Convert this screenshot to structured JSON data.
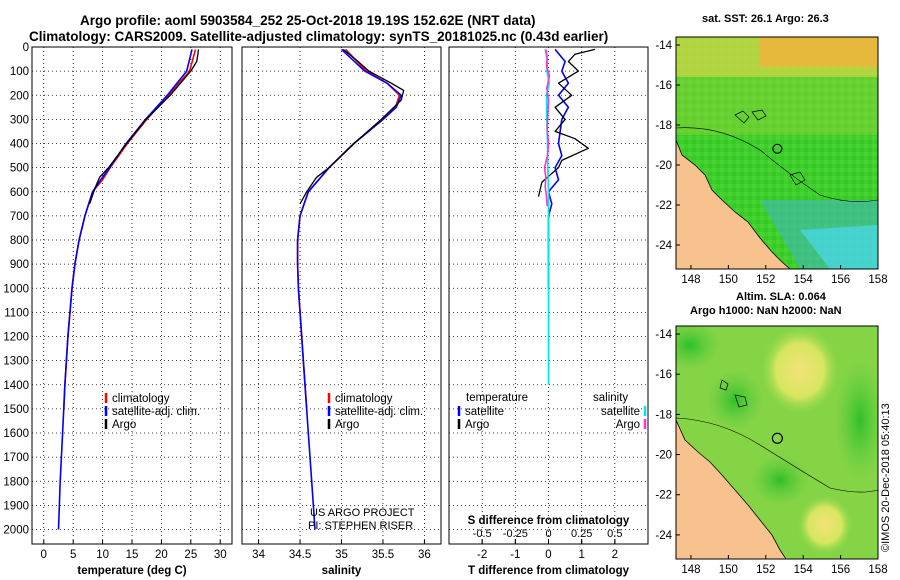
{
  "header": {
    "line1": "Argo profile: aoml 5903584_252 25-Oct-2018 19.19S 152.62E (NRT data)",
    "line2": "Climatology: CARS2009. Satellite-adjusted climatology: synTS_20181025.nc (0.43d earlier)"
  },
  "credit": {
    "line1": "US ARGO PROJECT",
    "line2": "PI: STEPHEN RISER"
  },
  "watermark": "©IMOS 20-Dec-2018 05:40:13",
  "legend_temp_salt": [
    {
      "label": "climatology",
      "color": "#ff0000"
    },
    {
      "label": "satellite-adj. clim.",
      "color": "#0000ff"
    },
    {
      "label": "Argo",
      "color": "#000000"
    }
  ],
  "legend_diff": {
    "temperature_header": "temperature",
    "salinity_header": "salinity",
    "temperature_items": [
      {
        "label": "satellite",
        "color": "#0000ff"
      },
      {
        "label": "Argo",
        "color": "#000000"
      }
    ],
    "salinity_items": [
      {
        "label": "satellite",
        "color": "#00e5ee"
      },
      {
        "label": "Argo",
        "color": "#ff33cc"
      }
    ]
  },
  "map_sst": {
    "title": "sat. SST: 26.1 Argo: 26.3"
  },
  "map_sla": {
    "title_line1": "Altim. SLA: 0.064",
    "title_line2": "Argo h1000: NaN h2000: NaN"
  },
  "map_axes": {
    "xticks": [
      148,
      150,
      152,
      154,
      156,
      158
    ],
    "yticks": [
      -14,
      -16,
      -18,
      -20,
      -22,
      -24
    ],
    "xlim": [
      147.2,
      158
    ],
    "ylim": [
      -25.2,
      -13.6
    ],
    "float_position": {
      "lon": 152.62,
      "lat": -19.19
    }
  },
  "chart_data": [
    {
      "type": "line",
      "title": "",
      "xlabel": "temperature (deg C)",
      "ylabel": "",
      "xlim": [
        -2,
        32
      ],
      "ylim": [
        2060,
        0
      ],
      "xticks": [
        0,
        5,
        10,
        15,
        20,
        25,
        30
      ],
      "yticks": [
        0,
        100,
        200,
        300,
        400,
        500,
        600,
        700,
        800,
        900,
        1000,
        1100,
        1200,
        1300,
        1400,
        1500,
        1600,
        1700,
        1800,
        1900,
        2000
      ],
      "series": [
        {
          "name": "climatology",
          "color": "#ff0000",
          "depth": [
            10,
            100,
            200,
            300,
            400,
            500,
            550,
            600,
            700,
            800,
            900,
            1000,
            1200,
            1400,
            1500
          ],
          "values": [
            25.8,
            24.8,
            21.2,
            17.5,
            14.2,
            11.3,
            10.0,
            8.3,
            7.0,
            6.0,
            5.3,
            4.8,
            4.1,
            3.6,
            3.4
          ]
        },
        {
          "name": "satellite-adj. clim.",
          "color": "#0000ff",
          "depth": [
            10,
            100,
            200,
            300,
            400,
            500,
            550,
            600,
            700,
            800,
            900,
            1000,
            1200,
            1400,
            1600,
            1800,
            2000
          ],
          "values": [
            25.2,
            24.3,
            21.0,
            17.3,
            14.0,
            11.2,
            9.7,
            8.3,
            7.0,
            6.0,
            5.3,
            4.8,
            4.1,
            3.6,
            3.2,
            2.8,
            2.5
          ]
        },
        {
          "name": "Argo",
          "color": "#000000",
          "depth": [
            10,
            30,
            60,
            100,
            200,
            300,
            400,
            500,
            540,
            580,
            650
          ],
          "values": [
            26.3,
            26.2,
            26.0,
            25.0,
            21.5,
            17.4,
            14.1,
            11.0,
            9.5,
            8.8,
            7.8
          ]
        }
      ]
    },
    {
      "type": "line",
      "title": "",
      "xlabel": "salinity",
      "ylabel": "",
      "xlim": [
        33.8,
        36.2
      ],
      "ylim": [
        2060,
        0
      ],
      "xticks": [
        34,
        34.5,
        35,
        35.5,
        36
      ],
      "series": [
        {
          "name": "climatology",
          "color": "#ff0000",
          "depth": [
            10,
            100,
            150,
            200,
            250,
            300,
            400,
            500,
            600,
            700,
            800,
            900,
            1000,
            1200,
            1400,
            1500
          ],
          "values": [
            35.05,
            35.3,
            35.55,
            35.7,
            35.65,
            35.5,
            35.15,
            34.85,
            34.6,
            34.5,
            34.47,
            34.47,
            34.48,
            34.52,
            34.56,
            34.58
          ]
        },
        {
          "name": "satellite-adj. clim.",
          "color": "#0000ff",
          "depth": [
            10,
            100,
            150,
            200,
            250,
            300,
            400,
            500,
            600,
            700,
            800,
            900,
            1000,
            1200,
            1400,
            1600,
            1800,
            2000
          ],
          "values": [
            35.0,
            35.28,
            35.55,
            35.72,
            35.66,
            35.5,
            35.15,
            34.85,
            34.6,
            34.5,
            34.47,
            34.47,
            34.48,
            34.52,
            34.56,
            34.6,
            34.64,
            34.68
          ]
        },
        {
          "name": "Argo",
          "color": "#000000",
          "depth": [
            10,
            60,
            100,
            150,
            180,
            220,
            260,
            300,
            400,
            500,
            540,
            600,
            650
          ],
          "values": [
            35.02,
            35.2,
            35.33,
            35.6,
            35.75,
            35.72,
            35.6,
            35.48,
            35.15,
            34.85,
            34.7,
            34.58,
            34.5
          ]
        }
      ]
    },
    {
      "type": "line",
      "title": "",
      "xlabel": "T difference from climatology",
      "secondary_xlabel": "S difference from climatology",
      "xlim": [
        -3,
        3
      ],
      "ylim": [
        2060,
        0
      ],
      "xticks": [
        -2,
        -1,
        0,
        1,
        2
      ],
      "secondary_xticks": [
        "-0.5",
        "-0.25",
        "0",
        "0.25",
        "0.5"
      ],
      "series": [
        {
          "name": "temperature satellite",
          "color": "#0000ff",
          "depth": [
            10,
            60,
            100,
            150,
            200,
            250,
            300,
            400,
            450,
            500,
            550,
            600,
            650,
            700,
            800,
            1000
          ],
          "values": [
            0.2,
            0.5,
            0.4,
            0.6,
            0.3,
            0.6,
            0.4,
            0.3,
            0.4,
            0.2,
            0.3,
            0.0,
            0.1,
            0.0,
            0.0,
            0.0
          ]
        },
        {
          "name": "temperature Argo",
          "color": "#000000",
          "depth": [
            10,
            30,
            60,
            100,
            150,
            200,
            250,
            300,
            350,
            380,
            420,
            470,
            500,
            560,
            620
          ],
          "values": [
            1.4,
            0.8,
            0.6,
            0.9,
            0.3,
            0.7,
            0.2,
            0.5,
            0.2,
            0.8,
            1.2,
            0.4,
            0.3,
            -0.2,
            -0.3
          ]
        },
        {
          "name": "salinity satellite",
          "color": "#00e5ee",
          "depth": [
            10,
            60,
            100,
            150,
            200,
            300,
            400,
            500,
            600,
            800,
            1000,
            1200,
            1400
          ],
          "values": [
            -0.1,
            -0.03,
            -0.05,
            0.02,
            -0.06,
            -0.05,
            -0.03,
            -0.02,
            0.0,
            0.0,
            0.0,
            0.0,
            0.0
          ]
        },
        {
          "name": "salinity Argo",
          "color": "#ff33cc",
          "depth": [
            10,
            40,
            80,
            120,
            170,
            220,
            280,
            340,
            400,
            450,
            500,
            540,
            580,
            620,
            660
          ],
          "values": [
            -0.08,
            -0.04,
            -0.06,
            0.03,
            -0.05,
            0.0,
            -0.02,
            -0.04,
            0.0,
            -0.03,
            -0.12,
            -0.08,
            -0.1,
            -0.06,
            -0.04
          ]
        }
      ]
    }
  ]
}
